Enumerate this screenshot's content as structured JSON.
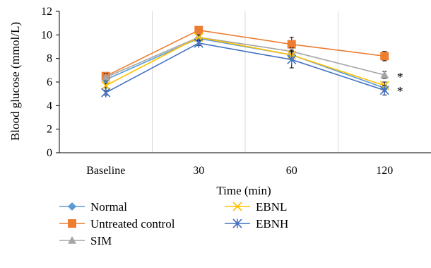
{
  "chart_data": {
    "type": "line",
    "title": "",
    "xlabel": "Time (min)",
    "ylabel": "Blood glucose (mmol/L)",
    "categories": [
      "Baseline",
      "30",
      "60",
      "120"
    ],
    "ylim": [
      0,
      12
    ],
    "yticks": [
      0,
      2,
      4,
      6,
      8,
      10,
      12
    ],
    "grid": "vertical dividers between categories",
    "legend_position": "bottom, two columns",
    "series": [
      {
        "name": "Normal",
        "values": [
          6.2,
          9.7,
          8.3,
          5.5
        ],
        "errors": [
          0.2,
          0.2,
          0.3,
          0.3
        ],
        "color": "#5B9BD5",
        "marker": "diamond"
      },
      {
        "name": "Untreated control",
        "values": [
          6.5,
          10.4,
          9.2,
          8.2
        ],
        "errors": [
          0.3,
          0.2,
          0.6,
          0.4
        ],
        "color": "#ED7D31",
        "marker": "square"
      },
      {
        "name": "SIM",
        "values": [
          6.4,
          9.8,
          8.6,
          6.6
        ],
        "errors": [
          0.3,
          0.2,
          0.3,
          0.3
        ],
        "color": "#A5A5A5",
        "marker": "triangle"
      },
      {
        "name": "EBNL",
        "values": [
          5.7,
          9.8,
          8.3,
          5.7
        ],
        "errors": [
          0.2,
          0.2,
          0.4,
          0.3
        ],
        "color": "#FFC000",
        "marker": "x"
      },
      {
        "name": "EBNH",
        "values": [
          5.1,
          9.3,
          7.9,
          5.3
        ],
        "errors": [
          0.2,
          0.2,
          0.7,
          0.4
        ],
        "color": "#4472C4",
        "marker": "star"
      }
    ],
    "annotations": [
      {
        "text": "*",
        "category": "120",
        "value": 6.6
      },
      {
        "text": "*",
        "category": "120",
        "value": 5.4
      }
    ]
  }
}
